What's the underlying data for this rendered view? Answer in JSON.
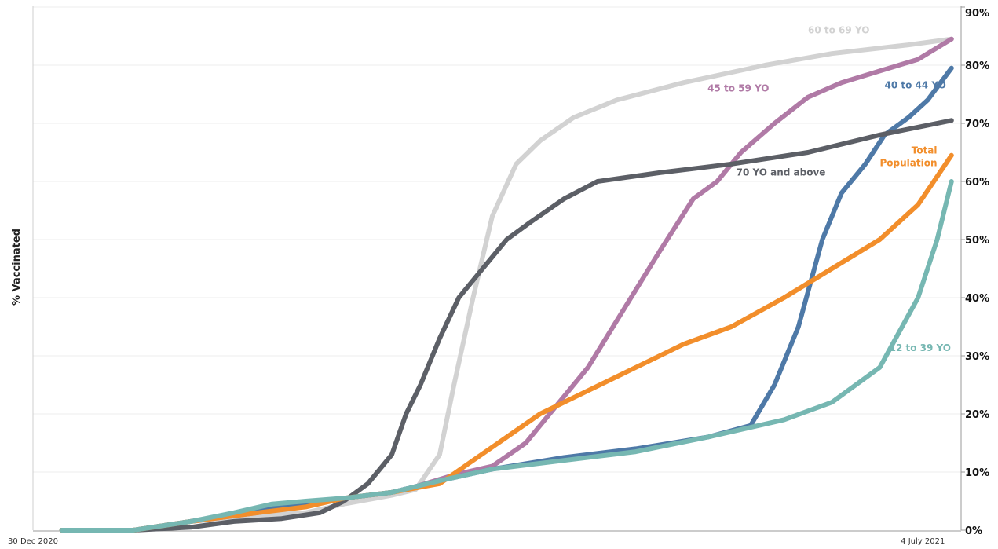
{
  "chart_data": {
    "type": "line",
    "title": "",
    "xlabel": "",
    "ylabel": "% Vaccinated",
    "x_range": [
      "2020-12-30",
      "2021-07-12"
    ],
    "ylim": [
      0,
      90
    ],
    "y_ticks": [
      {
        "value": 0,
        "label": "0%"
      },
      {
        "value": 10,
        "label": "10%"
      },
      {
        "value": 20,
        "label": "20%"
      },
      {
        "value": 30,
        "label": "30%"
      },
      {
        "value": 40,
        "label": "40%"
      },
      {
        "value": 50,
        "label": "50%"
      },
      {
        "value": 60,
        "label": "60%"
      },
      {
        "value": 70,
        "label": "70%"
      },
      {
        "value": 80,
        "label": "80%"
      },
      {
        "value": 90,
        "label": "90%"
      }
    ],
    "x_ticks": [
      {
        "date": "2020-12-30",
        "label": "30 Dec 2020"
      },
      {
        "date": "2021-07-04",
        "label": "4 July 2021"
      }
    ],
    "grid": true,
    "legend": "inline labels",
    "series": [
      {
        "name": "60 to 69 YO",
        "color": "#d2d2d2",
        "points": [
          [
            "2021-01-05",
            0
          ],
          [
            "2021-01-20",
            0
          ],
          [
            "2021-02-01",
            1.5
          ],
          [
            "2021-02-15",
            2.5
          ],
          [
            "2021-02-25",
            3
          ],
          [
            "2021-03-05",
            4.5
          ],
          [
            "2021-03-15",
            6
          ],
          [
            "2021-03-20",
            7
          ],
          [
            "2021-03-25",
            13
          ],
          [
            "2021-03-28",
            25
          ],
          [
            "2021-04-01",
            40
          ],
          [
            "2021-04-05",
            54
          ],
          [
            "2021-04-10",
            63
          ],
          [
            "2021-04-15",
            67
          ],
          [
            "2021-04-22",
            71
          ],
          [
            "2021-05-01",
            74
          ],
          [
            "2021-05-15",
            77
          ],
          [
            "2021-06-01",
            80
          ],
          [
            "2021-06-15",
            82
          ],
          [
            "2021-07-01",
            83.5
          ],
          [
            "2021-07-10",
            84.5
          ]
        ],
        "label": {
          "text": "60 to 69 YO",
          "date": "2021-06-10",
          "value": 85.5,
          "anchor": "start"
        }
      },
      {
        "name": "45 to 59 YO",
        "color": "#b07aa6",
        "points": [
          [
            "2021-01-05",
            0
          ],
          [
            "2021-01-20",
            0
          ],
          [
            "2021-02-01",
            1.5
          ],
          [
            "2021-02-15",
            3
          ],
          [
            "2021-02-25",
            4.5
          ],
          [
            "2021-03-05",
            5.5
          ],
          [
            "2021-03-15",
            6.5
          ],
          [
            "2021-03-20",
            7.5
          ],
          [
            "2021-03-28",
            9.5
          ],
          [
            "2021-04-05",
            11
          ],
          [
            "2021-04-12",
            15
          ],
          [
            "2021-04-17",
            20
          ],
          [
            "2021-04-25",
            28
          ],
          [
            "2021-05-01",
            36
          ],
          [
            "2021-05-10",
            48
          ],
          [
            "2021-05-17",
            57
          ],
          [
            "2021-05-22",
            60
          ],
          [
            "2021-05-27",
            65
          ],
          [
            "2021-06-03",
            70
          ],
          [
            "2021-06-10",
            74.5
          ],
          [
            "2021-06-17",
            77
          ],
          [
            "2021-06-25",
            79
          ],
          [
            "2021-07-03",
            81
          ],
          [
            "2021-07-10",
            84.5
          ]
        ],
        "label": {
          "text": "45 to 59 YO",
          "date": "2021-05-20",
          "value": 75.5,
          "anchor": "start"
        }
      },
      {
        "name": "40 to 44 YO",
        "color": "#4e79a7",
        "points": [
          [
            "2021-01-05",
            0
          ],
          [
            "2021-01-20",
            0
          ],
          [
            "2021-02-01",
            1.5
          ],
          [
            "2021-02-15",
            3.5
          ],
          [
            "2021-02-25",
            4.5
          ],
          [
            "2021-03-05",
            5.5
          ],
          [
            "2021-03-15",
            6.5
          ],
          [
            "2021-03-25",
            8.5
          ],
          [
            "2021-04-05",
            10.5
          ],
          [
            "2021-04-20",
            12.5
          ],
          [
            "2021-05-05",
            14
          ],
          [
            "2021-05-20",
            16
          ],
          [
            "2021-05-29",
            18
          ],
          [
            "2021-06-03",
            25
          ],
          [
            "2021-06-08",
            35
          ],
          [
            "2021-06-13",
            50
          ],
          [
            "2021-06-17",
            58
          ],
          [
            "2021-06-22",
            63
          ],
          [
            "2021-06-26",
            68
          ],
          [
            "2021-07-01",
            71
          ],
          [
            "2021-07-05",
            74
          ],
          [
            "2021-07-10",
            79.5
          ]
        ],
        "label": {
          "text": "40 to 44 YO",
          "date": "2021-06-26",
          "value": 76,
          "anchor": "start"
        }
      },
      {
        "name": "70 YO and above",
        "color": "#5c5f66",
        "points": [
          [
            "2021-01-05",
            0
          ],
          [
            "2021-01-20",
            0
          ],
          [
            "2021-02-01",
            0.5
          ],
          [
            "2021-02-10",
            1.5
          ],
          [
            "2021-02-20",
            2
          ],
          [
            "2021-02-28",
            3
          ],
          [
            "2021-03-05",
            5
          ],
          [
            "2021-03-10",
            8
          ],
          [
            "2021-03-15",
            13
          ],
          [
            "2021-03-18",
            20
          ],
          [
            "2021-03-21",
            25
          ],
          [
            "2021-03-25",
            33
          ],
          [
            "2021-03-29",
            40
          ],
          [
            "2021-04-03",
            45
          ],
          [
            "2021-04-08",
            50
          ],
          [
            "2021-04-13",
            53
          ],
          [
            "2021-04-20",
            57
          ],
          [
            "2021-04-27",
            60
          ],
          [
            "2021-05-10",
            61.5
          ],
          [
            "2021-05-25",
            63
          ],
          [
            "2021-06-10",
            65
          ],
          [
            "2021-06-25",
            68
          ],
          [
            "2021-07-10",
            70.5
          ]
        ],
        "label": {
          "text": "70 YO and above",
          "date": "2021-05-26",
          "value": 61,
          "anchor": "start"
        }
      },
      {
        "name": "Total Population",
        "color": "#f28e2b",
        "points": [
          [
            "2021-01-05",
            0
          ],
          [
            "2021-01-20",
            0
          ],
          [
            "2021-02-01",
            1.5
          ],
          [
            "2021-02-15",
            3
          ],
          [
            "2021-02-25",
            4
          ],
          [
            "2021-03-05",
            5.5
          ],
          [
            "2021-03-15",
            6.5
          ],
          [
            "2021-03-25",
            8
          ],
          [
            "2021-04-01",
            12
          ],
          [
            "2021-04-08",
            16
          ],
          [
            "2021-04-15",
            20
          ],
          [
            "2021-04-25",
            24
          ],
          [
            "2021-05-05",
            28
          ],
          [
            "2021-05-15",
            32
          ],
          [
            "2021-05-25",
            35
          ],
          [
            "2021-06-05",
            40
          ],
          [
            "2021-06-15",
            45
          ],
          [
            "2021-06-25",
            50
          ],
          [
            "2021-07-03",
            56
          ],
          [
            "2021-07-10",
            64.5
          ]
        ],
        "label": {
          "text": "Total\nPopulation",
          "date": "2021-07-07",
          "value": 64.8,
          "anchor": "end"
        }
      },
      {
        "name": "12 to 39 YO",
        "color": "#76b7b2",
        "points": [
          [
            "2021-01-05",
            0
          ],
          [
            "2021-01-20",
            0
          ],
          [
            "2021-02-01",
            1.5
          ],
          [
            "2021-02-10",
            3
          ],
          [
            "2021-02-18",
            4.5
          ],
          [
            "2021-02-25",
            5
          ],
          [
            "2021-03-05",
            5.5
          ],
          [
            "2021-03-15",
            6.5
          ],
          [
            "2021-03-25",
            8.5
          ],
          [
            "2021-04-05",
            10.5
          ],
          [
            "2021-04-20",
            12
          ],
          [
            "2021-05-05",
            13.5
          ],
          [
            "2021-05-20",
            16
          ],
          [
            "2021-06-05",
            19
          ],
          [
            "2021-06-15",
            22
          ],
          [
            "2021-06-25",
            28
          ],
          [
            "2021-07-03",
            40
          ],
          [
            "2021-07-07",
            50
          ],
          [
            "2021-07-10",
            60
          ]
        ],
        "label": {
          "text": "12 to 39 YO",
          "date": "2021-06-27",
          "value": 30.8,
          "anchor": "start"
        }
      }
    ]
  }
}
